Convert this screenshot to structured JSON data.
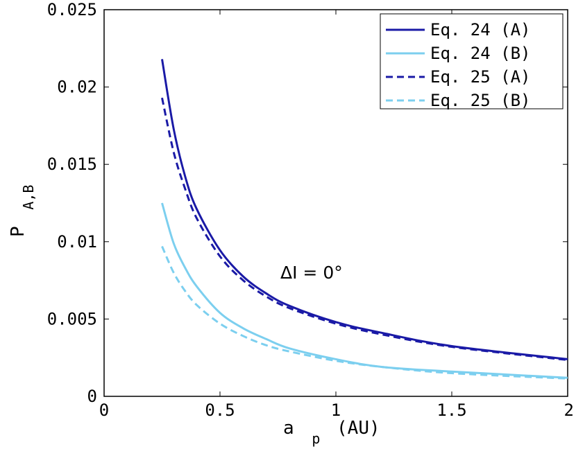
{
  "chart_data": {
    "type": "line",
    "title": "",
    "xlabel": {
      "main": "a",
      "sub": "p",
      "rest": "(AU)"
    },
    "ylabel": {
      "main": "P",
      "sub": "A,B"
    },
    "xlim": [
      0,
      2
    ],
    "ylim": [
      0,
      0.025
    ],
    "xticks": [
      0,
      0.5,
      1,
      1.5,
      2
    ],
    "xtick_labels": [
      "0",
      "0.5",
      "1",
      "1.5",
      "2"
    ],
    "yticks": [
      0,
      0.005,
      0.01,
      0.015,
      0.02,
      0.025
    ],
    "ytick_labels": [
      "0",
      "0.005",
      "0.01",
      "0.015",
      "0.02",
      "0.025"
    ],
    "grid": false,
    "legend_position": "top-right",
    "annotation": "ΔI = 0°",
    "series": [
      {
        "name": "Eq. 24 (A)",
        "color": "#1a1aa6",
        "style": "solid",
        "x": [
          0.25,
          0.3,
          0.35,
          0.4,
          0.5,
          0.6,
          0.7,
          0.8,
          1.0,
          1.2,
          1.5,
          2.0
        ],
        "y": [
          0.0218,
          0.0173,
          0.0142,
          0.0121,
          0.00945,
          0.00775,
          0.00665,
          0.00585,
          0.0048,
          0.0041,
          0.00325,
          0.0024
        ]
      },
      {
        "name": "Eq. 24 (B)",
        "color": "#7ccfef",
        "style": "solid",
        "x": [
          0.25,
          0.3,
          0.35,
          0.4,
          0.5,
          0.6,
          0.7,
          0.8,
          1.0,
          1.2,
          1.5,
          2.0
        ],
        "y": [
          0.0125,
          0.0099,
          0.0083,
          0.0071,
          0.0054,
          0.0044,
          0.0037,
          0.0031,
          0.0024,
          0.0019,
          0.0016,
          0.0012
        ]
      },
      {
        "name": "Eq. 25 (A)",
        "color": "#1a1aa6",
        "style": "dashed",
        "x": [
          0.25,
          0.3,
          0.35,
          0.4,
          0.5,
          0.6,
          0.7,
          0.8,
          1.0,
          1.2,
          1.5,
          2.0
        ],
        "y": [
          0.0193,
          0.0158,
          0.0134,
          0.0115,
          0.00905,
          0.0075,
          0.00645,
          0.0057,
          0.0047,
          0.004,
          0.0032,
          0.00235
        ]
      },
      {
        "name": "Eq. 25 (B)",
        "color": "#7ccfef",
        "style": "dashed",
        "x": [
          0.25,
          0.3,
          0.35,
          0.4,
          0.5,
          0.6,
          0.7,
          0.8,
          1.0,
          1.2,
          1.5,
          2.0
        ],
        "y": [
          0.0097,
          0.008,
          0.0068,
          0.0059,
          0.0047,
          0.0039,
          0.0033,
          0.0029,
          0.0023,
          0.0019,
          0.0015,
          0.00115
        ]
      }
    ]
  }
}
